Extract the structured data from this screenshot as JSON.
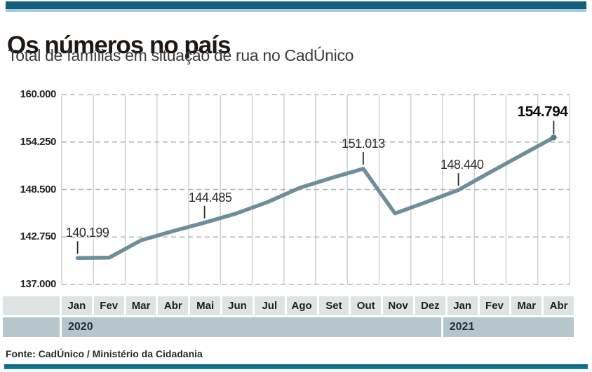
{
  "header": {
    "title": "Os números no país",
    "subtitle": "Total de famílias em situação de rua no CadÚnico"
  },
  "footer": {
    "source": "Fonte: CadÚnico / Ministério da Cidadania"
  },
  "chart_data": {
    "type": "line",
    "title": "Os números no país",
    "subtitle": "Total de famílias em situação de rua no CadÚnico",
    "categories": [
      "Jan",
      "Fev",
      "Mar",
      "Abr",
      "Mai",
      "Jun",
      "Jul",
      "Ago",
      "Set",
      "Out",
      "Nov",
      "Dez",
      "Jan",
      "Fev",
      "Mar",
      "Abr"
    ],
    "x_groups": [
      {
        "label": "2020",
        "months": 12
      },
      {
        "label": "2021",
        "months": 4
      }
    ],
    "values": [
      140199,
      140250,
      142350,
      143450,
      144485,
      145600,
      147000,
      148700,
      149900,
      151013,
      145600,
      147000,
      148440,
      150600,
      152700,
      154794
    ],
    "labeled_points": [
      {
        "index": 0,
        "label": "140.199",
        "bold": false,
        "dx": 14
      },
      {
        "index": 4,
        "label": "144.485",
        "bold": false,
        "dx": 8
      },
      {
        "index": 9,
        "label": "151.013",
        "bold": false,
        "dx": 0
      },
      {
        "index": 12,
        "label": "148.440",
        "bold": false,
        "dx": 5
      },
      {
        "index": 15,
        "label": "154.794",
        "bold": true,
        "dx": -16
      }
    ],
    "y_ticks": [
      "160.000",
      "154.250",
      "148.500",
      "142.750",
      "137.000"
    ],
    "y_tick_values": [
      160000,
      154250,
      148500,
      142750,
      137000
    ],
    "ylim": [
      137000,
      160000
    ],
    "grid": {
      "vertical": "solid",
      "horizontal": "dashed"
    },
    "legend": "none",
    "line_color": "#6e8e9b"
  },
  "colors": {
    "top_bar": "#135e7e",
    "top_bar_light": "#a9cadb",
    "bottom_bar": "#0e7793",
    "line": "#6e8e9b",
    "month_band_bg": "#dfe3e4",
    "year_band_bg": "#b5c6cc"
  }
}
